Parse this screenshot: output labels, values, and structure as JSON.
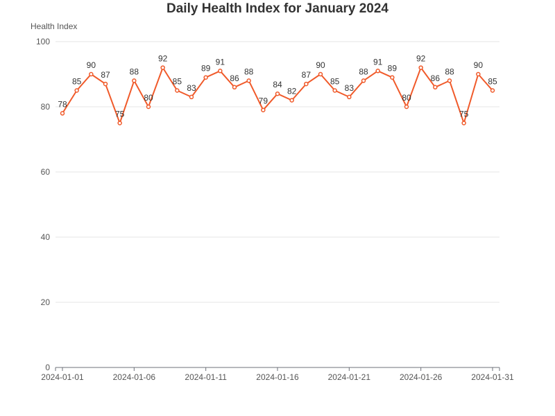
{
  "chart_data": {
    "type": "line",
    "title": "Daily Health Index for January 2024",
    "ylabel": "Health Index",
    "xlabel": "",
    "x": [
      "2024-01-01",
      "2024-01-02",
      "2024-01-03",
      "2024-01-04",
      "2024-01-05",
      "2024-01-06",
      "2024-01-07",
      "2024-01-08",
      "2024-01-09",
      "2024-01-10",
      "2024-01-11",
      "2024-01-12",
      "2024-01-13",
      "2024-01-14",
      "2024-01-15",
      "2024-01-16",
      "2024-01-17",
      "2024-01-18",
      "2024-01-19",
      "2024-01-20",
      "2024-01-21",
      "2024-01-22",
      "2024-01-23",
      "2024-01-24",
      "2024-01-25",
      "2024-01-26",
      "2024-01-27",
      "2024-01-28",
      "2024-01-29",
      "2024-01-30",
      "2024-01-31"
    ],
    "series": [
      {
        "values": [
          78,
          85,
          90,
          87,
          75,
          88,
          80,
          92,
          85,
          83,
          89,
          91,
          86,
          88,
          79,
          84,
          82,
          87,
          90,
          85,
          83,
          88,
          91,
          89,
          80,
          92,
          86,
          88,
          75,
          90,
          85
        ],
        "color": "#f05a2a"
      }
    ],
    "ylim": [
      0,
      100
    ],
    "yticks": [
      "0",
      "20",
      "40",
      "60",
      "80",
      "100"
    ],
    "xtick_labels": [
      "2024-01-01",
      "2024-01-06",
      "2024-01-11",
      "2024-01-16",
      "2024-01-21",
      "2024-01-26",
      "2024-01-31"
    ],
    "grid": "horizontal",
    "data_labels": true
  }
}
